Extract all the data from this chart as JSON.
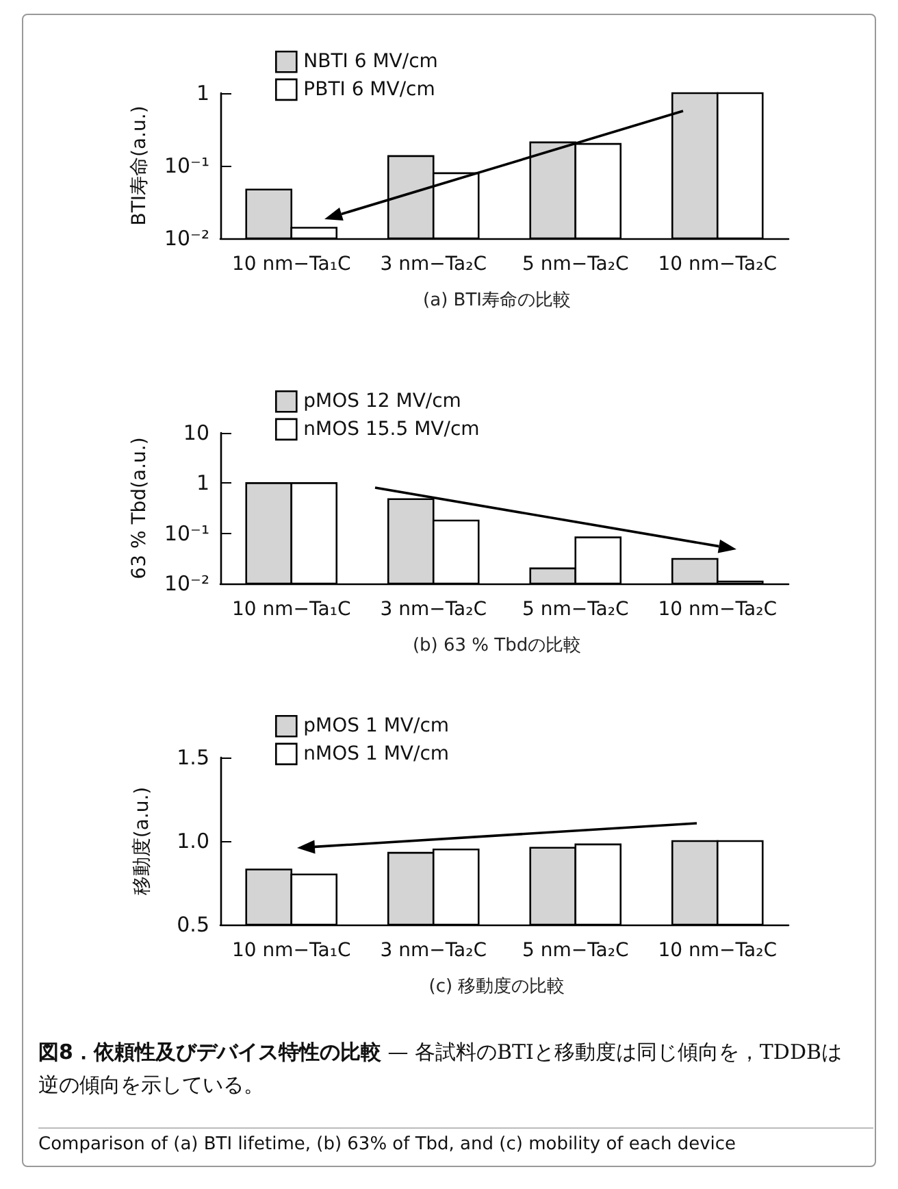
{
  "chart_data": [
    {
      "type": "bar",
      "title": "(a) BTI寿命の比較",
      "ylabel": "BTI寿命(a.u.)",
      "categories": [
        "10 nm−Ta₁C",
        "3 nm−Ta₂C",
        "5 nm−Ta₂C",
        "10 nm−Ta₂C"
      ],
      "series": [
        {
          "name": "NBTI 6 MV/cm",
          "color": "#d4d4d4",
          "values": [
            0.047,
            0.136,
            0.21,
            1
          ]
        },
        {
          "name": "PBTI 6 MV/cm",
          "color": "#ffffff",
          "values": [
            0.014,
            0.079,
            0.2,
            1
          ]
        }
      ],
      "log": "y",
      "ylim": [
        0.01,
        1
      ],
      "yticks": [
        {
          "value": 0.01,
          "label": "10⁻²"
        },
        {
          "value": 0.1,
          "label": "10⁻¹"
        },
        1
      ],
      "legend": "top left",
      "grid": false
    },
    {
      "type": "bar",
      "title": "(b) 63 % Tbdの比較",
      "ylabel": "63 % Tbd(a.u.)",
      "categories": [
        "10 nm−Ta₁C",
        "3 nm−Ta₂C",
        "5 nm−Ta₂C",
        "10 nm−Ta₂C"
      ],
      "series": [
        {
          "name": "pMOS 12 MV/cm",
          "color": "#d4d4d4",
          "values": [
            1,
            0.48,
            0.02,
            0.031
          ]
        },
        {
          "name": "nMOS 15.5 MV/cm",
          "color": "#ffffff",
          "values": [
            1,
            0.18,
            0.083,
            0.011
          ]
        }
      ],
      "log": "y",
      "ylim": [
        0.01,
        10
      ],
      "yticks": [
        {
          "value": 0.01,
          "label": "10⁻²"
        },
        {
          "value": 0.1,
          "label": "10⁻¹"
        },
        1,
        10
      ],
      "legend": "top left",
      "grid": false
    },
    {
      "type": "bar",
      "title": "(c) 移動度の比較",
      "ylabel": "移動度(a.u.)",
      "categories": [
        "10 nm−Ta₁C",
        "3 nm−Ta₂C",
        "5 nm−Ta₂C",
        "10 nm−Ta₂C"
      ],
      "series": [
        {
          "name": "pMOS 1 MV/cm",
          "color": "#d4d4d4",
          "values": [
            0.83,
            0.93,
            0.96,
            1.0
          ]
        },
        {
          "name": "nMOS 1 MV/cm",
          "color": "#ffffff",
          "values": [
            0.8,
            0.95,
            0.98,
            1.0
          ]
        }
      ],
      "ylim": [
        0.5,
        1.5
      ],
      "yticks": [
        0.5,
        {
          "value": 1.0,
          "label": "1.0"
        },
        1.5
      ],
      "legend": "top left",
      "grid": false,
      "annotations": [
        "図8．依頼性及びデバイス特性の比較",
        "— 各試料のBTIと移動度は同じ傾向を，TDDBは逆の傾向を示している。",
        "Comparison of (a) BTI lifetime, (b) 63% of Tbd, and (c) mobility of each device"
      ]
    }
  ]
}
